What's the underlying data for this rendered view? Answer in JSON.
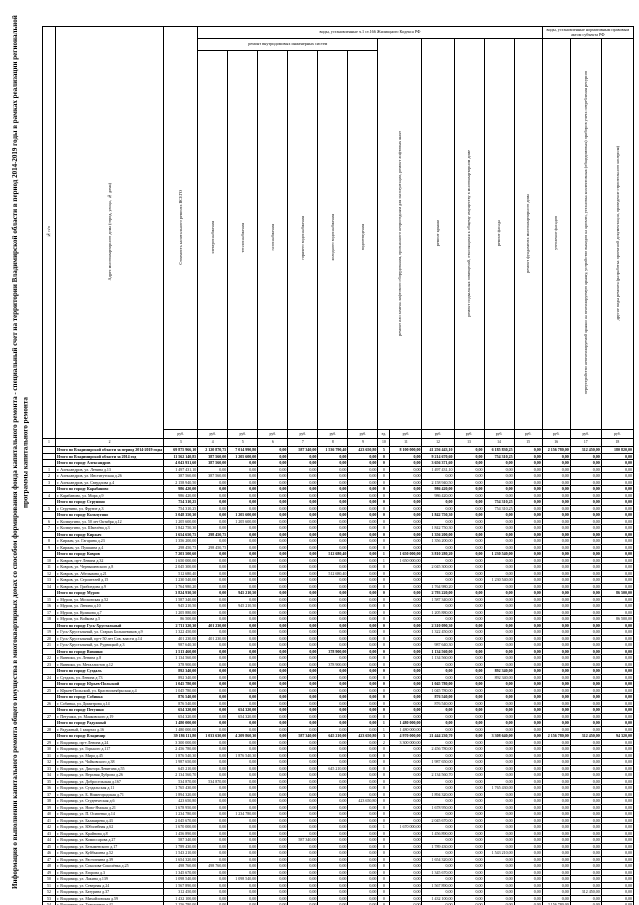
{
  "page": {
    "title": "Информация о выполнении капитального ремонта общего имущества в многоквартирных домах со способом формирования фонда капитального ремонта - специальный счет на территории Владимирской области в период 2014-2019 годы в рамках реализации региональной программы капитального ремонта"
  },
  "table": {
    "zero_money": "0,00",
    "zero_count": "0",
    "header": {
      "num": "№ п/п",
      "address": "Адрес многоквартирного дома (город, улица, № дома)",
      "total": "Стоимость капитального ремонта ВСЕГО",
      "group_hk": "виды, установленные ч.1 ст.166 Жилищного Кодекса РФ",
      "group_regional": "виды, установленные нормативным правовым актом субъекта РФ",
      "group_systems": "ремонт внутридомовых инженерных систем",
      "systems": [
        "электроснабжения",
        "теплоснабжения",
        "газоснабжения",
        "горячего водоснабжения",
        "холодного водоснабжения",
        "водоотведения"
      ],
      "works": [
        "ремонт или замена лифтового оборудования, признанного непригодным для эксплуатации, ремонт лифтовых шахт",
        "ремонт крыши",
        "ремонт подвальных помещений, относящихся к общему имуществу в многоквартирном доме",
        "ремонт фасада",
        "ремонт фундамента многоквартирного дома",
        "утепление фасадов",
        "переустройство невентилируемой крыши на вентилируемую крышу, устройство выходов на кровлю, установка коллективных (общедомовых) приборов учета потребления ресурсов",
        "другие виды ремонта (разработка проектной документации, проведение строительного контроля)"
      ],
      "units": [
        "руб.",
        "руб.",
        "руб.",
        "руб.",
        "руб.",
        "руб.",
        "руб.",
        "ед.",
        "руб.",
        "руб.",
        "руб.",
        "руб.",
        "руб.",
        "руб.",
        "руб.",
        "руб."
      ],
      "index": [
        "1",
        "2",
        "3",
        "4",
        "5",
        "6",
        "7",
        "8",
        "9",
        "10",
        "11",
        "12",
        "13",
        "14",
        "15",
        "16",
        "17",
        "18"
      ]
    },
    "rows": [
      {
        "kind": "region",
        "num": "",
        "address": "Итого по Владимирской области за период 2014-2019 годы",
        "v": {
          "0": "69 875 966,10",
          "1": "2 120 870,75",
          "2": "7 014 990,80",
          "4": "587 340,00",
          "5": "1 536 790,40",
          "6": "423 650,80",
          "7": "5",
          "8": "8 100 000,00",
          "9": "41 256 443,10",
          "11": "6 185 830,25",
          "13": "2 156 780,00",
          "14": "312 450,00",
          "15": "180 820,00"
        }
      },
      {
        "kind": "region",
        "num": "",
        "address": "Итого по Владимирской области за 2014 год",
        "v": {
          "0": "11 562 140,85",
          "1": "387 560,00",
          "2": "1 205 600,00",
          "9": "9 214 670,60",
          "11": "754 310,25"
        }
      },
      {
        "kind": "city",
        "num": "",
        "address": "Итого по городу Александров",
        "v": {
          "0": "4 043 931,60",
          "1": "387 560,00",
          "9": "3 656 371,60"
        }
      },
      {
        "kind": "house",
        "num": "1",
        "address": "г. Александров, ул. Ленина д.13",
        "v": {
          "0": "1 497 431,10",
          "9": "1 497 431,10"
        }
      },
      {
        "kind": "house",
        "num": "2",
        "address": "г. Александров, ул. Институтская д.26",
        "v": {
          "0": "387 560,00",
          "1": "387 560,00"
        }
      },
      {
        "kind": "house",
        "num": "3",
        "address": "г. Александров, ул. Свердлова д.4",
        "v": {
          "0": "2 158 940,50",
          "9": "2 158 940,50"
        }
      },
      {
        "kind": "city",
        "num": "",
        "address": "Итого по городу Карабаново",
        "v": {
          "0": "986 420,00",
          "9": "986 420,00"
        }
      },
      {
        "kind": "house",
        "num": "4",
        "address": "г. Карабаново, ул. Мира д.9",
        "v": {
          "0": "986 420,00",
          "9": "986 420,00"
        }
      },
      {
        "kind": "city",
        "num": "",
        "address": "Итого по городу Струнино",
        "v": {
          "0": "754 310,25",
          "11": "754 310,25"
        }
      },
      {
        "kind": "house",
        "num": "5",
        "address": "г. Струнино, ул. Фрунзе д.3",
        "v": {
          "0": "754 310,25",
          "11": "754 310,25"
        }
      },
      {
        "kind": "city",
        "num": "",
        "address": "Итого по городу Кольчугино",
        "v": {
          "0": "3 048 350,30",
          "2": "1 205 600,00",
          "9": "1 842 750,30"
        }
      },
      {
        "kind": "house",
        "num": "6",
        "address": "г. Кольчугино, ул. 50 лет Октября д.12",
        "v": {
          "0": "1 205 600,00",
          "2": "1 205 600,00"
        }
      },
      {
        "kind": "house",
        "num": "7",
        "address": "г. Кольчугино, ул. Шмелёва д.3",
        "v": {
          "0": "1 842 750,30",
          "9": "1 842 750,30"
        }
      },
      {
        "kind": "city",
        "num": "",
        "address": "Итого по городу Киржач",
        "v": {
          "0": "1 654 650,75",
          "1": "298 450,75",
          "9": "1 356 200,00"
        }
      },
      {
        "kind": "house",
        "num": "8",
        "address": "г. Киржач, ул. Гагарина д.23",
        "v": {
          "0": "1 356 200,00",
          "9": "1 356 200,00"
        }
      },
      {
        "kind": "house",
        "num": "9",
        "address": "г. Киржач, ул. Пушкина д.4",
        "v": {
          "0": "298 450,75",
          "1": "298 450,75"
        }
      },
      {
        "kind": "city",
        "num": "",
        "address": "Итого по городу Ковров",
        "v": {
          "0": "7 203 500,60",
          "5": "512 680,40",
          "7": "1",
          "8": "1 650 000,00",
          "9": "3 810 280,20",
          "11": "1 230 540,00"
        }
      },
      {
        "kind": "house",
        "num": "10",
        "address": "г. Ковров, пр-т Ленина д.32",
        "v": {
          "0": "1 650 000,00",
          "7": "1",
          "8": "1 650 000,00"
        }
      },
      {
        "kind": "house",
        "num": "11",
        "address": "г. Ковров, ул. Чернышевского д.8",
        "v": {
          "0": "2 045 300,00",
          "9": "2 045 300,00"
        }
      },
      {
        "kind": "house",
        "num": "12",
        "address": "г. Ковров, ул. Абельмана д.21",
        "v": {
          "0": "512 680,40",
          "5": "512 680,40"
        }
      },
      {
        "kind": "house",
        "num": "13",
        "address": "г. Ковров, ул. Строителей д.15",
        "v": {
          "0": "1 230 540,00",
          "11": "1 230 540,00"
        }
      },
      {
        "kind": "house",
        "num": "14",
        "address": "г. Ковров, ул. Грибоедова д.9",
        "v": {
          "0": "1 764 980,20",
          "9": "1 764 980,20"
        }
      },
      {
        "kind": "city",
        "num": "",
        "address": "Итого по городу Муром",
        "v": {
          "0": "3 824 930,50",
          "2": "945 210,50",
          "9": "2 793 220,00",
          "15": "86 500,00"
        }
      },
      {
        "kind": "house",
        "num": "15",
        "address": "г. Муром, ул. Московская д.52",
        "v": {
          "0": "1 587 340,00",
          "9": "1 587 340,00"
        }
      },
      {
        "kind": "house",
        "num": "16",
        "address": "г. Муром, ул. Ленина д.10",
        "v": {
          "0": "945 210,50",
          "2": "945 210,50"
        }
      },
      {
        "kind": "house",
        "num": "17",
        "address": "г. Муром, ул. Куликова д.7",
        "v": {
          "0": "1 205 880,00",
          "9": "1 205 880,00"
        }
      },
      {
        "kind": "house",
        "num": "18",
        "address": "г. Муром, ул. Войкова д.5",
        "v": {
          "0": "86 500,00",
          "15": "86 500,00"
        }
      },
      {
        "kind": "city",
        "num": "",
        "address": "Итого по городу Гусь-Хрустальный",
        "v": {
          "0": "2 711 320,30",
          "1": "401 230,00",
          "9": "2 310 090,30"
        }
      },
      {
        "kind": "house",
        "num": "19",
        "address": "г. Гусь-Хрустальный, ул. Старых Большевиков д.9",
        "v": {
          "0": "1 322 450,00",
          "9": "1 322 450,00"
        }
      },
      {
        "kind": "house",
        "num": "20",
        "address": "г. Гусь-Хрустальный, пр-т 50 лет Сов. власти д.14",
        "v": {
          "0": "401 230,00",
          "1": "401 230,00"
        }
      },
      {
        "kind": "house",
        "num": "21",
        "address": "г. Гусь-Хрустальный, ул. Рудницкой д.3",
        "v": {
          "0": "987 640,30",
          "9": "987 640,30"
        }
      },
      {
        "kind": "city",
        "num": "",
        "address": "Итого по городу Вязники",
        "v": {
          "0": "1 513 460,00",
          "5": "378 900,00",
          "9": "1 134 560,00"
        }
      },
      {
        "kind": "house",
        "num": "22",
        "address": "г. Вязники, ул. Ленина д.8",
        "v": {
          "0": "1 134 560,00",
          "9": "1 134 560,00"
        }
      },
      {
        "kind": "house",
        "num": "23",
        "address": "г. Вязники, ул. Металлистов д.12",
        "v": {
          "0": "378 900,00",
          "5": "378 900,00"
        }
      },
      {
        "kind": "city",
        "num": "",
        "address": "Итого по городу Суздаль",
        "v": {
          "0": "892 340,00",
          "11": "892 340,00"
        }
      },
      {
        "kind": "house",
        "num": "24",
        "address": "г. Суздаль, ул. Ленина д.73",
        "v": {
          "0": "892 340,00",
          "11": "892 340,00"
        }
      },
      {
        "kind": "city",
        "num": "",
        "address": "Итого по городу Юрьев-Польский",
        "v": {
          "0": "1 045 780,00",
          "9": "1 045 780,00"
        }
      },
      {
        "kind": "house",
        "num": "25",
        "address": "г. Юрьев-Польский, ул. Краснооктябрьская д.4",
        "v": {
          "0": "1 045 780,00",
          "9": "1 045 780,00"
        }
      },
      {
        "kind": "city",
        "num": "",
        "address": "Итого по городу Собинка",
        "v": {
          "0": "876 540,00",
          "9": "876 540,00"
        }
      },
      {
        "kind": "house",
        "num": "26",
        "address": "г. Собинка, ул. Димитрова д.14",
        "v": {
          "0": "876 540,00",
          "9": "876 540,00"
        }
      },
      {
        "kind": "city",
        "num": "",
        "address": "Итого по городу Петушки",
        "v": {
          "0": "654 320,00",
          "2": "654 320,00"
        }
      },
      {
        "kind": "house",
        "num": "27",
        "address": "г. Петушки, ул. Маяковского д.19",
        "v": {
          "0": "654 320,00",
          "2": "654 320,00"
        }
      },
      {
        "kind": "city",
        "num": "",
        "address": "Итого по городу Радужный",
        "v": {
          "0": "1 480 000,00",
          "7": "1",
          "8": "1 480 000,00"
        }
      },
      {
        "kind": "house",
        "num": "28",
        "address": "г. Радужный, 1 квартал д.16",
        "v": {
          "0": "1 480 000,00",
          "7": "1",
          "8": "1 480 000,00"
        }
      },
      {
        "kind": "city",
        "num": "",
        "address": "Итого по городу Владимир",
        "v": {
          "0": "39 186 111,80",
          "1": "1 033 630,00",
          "2": "4 209 860,30",
          "4": "587 340,00",
          "5": "645 210,00",
          "6": "423 650,80",
          "7": "3",
          "8": "4 970 000,00",
          "9": "21 444 230,70",
          "11": "3 308 640,00",
          "13": "2 156 780,00",
          "14": "312 450,00",
          "15": "94 320,00"
        }
      },
      {
        "kind": "house",
        "num": "29",
        "address": "г. Владимир, пр-т Ленина д.24",
        "v": {
          "0": "3 300 000,00",
          "7": "2",
          "8": "3 300 000,00"
        }
      },
      {
        "kind": "house",
        "num": "30",
        "address": "г. Владимир, ул. Горького д.117",
        "v": {
          "0": "2 456 780,00",
          "9": "2 456 780,00"
        }
      },
      {
        "kind": "house",
        "num": "31",
        "address": "г. Владимир, ул. Мира д.45",
        "v": {
          "0": "1 876 540,30",
          "2": "1 876 540,30"
        }
      },
      {
        "kind": "house",
        "num": "32",
        "address": "г. Владимир, ул. Чайковского д.38",
        "v": {
          "0": "1 987 650,00",
          "9": "1 987 650,00"
        }
      },
      {
        "kind": "house",
        "num": "33",
        "address": "г. Владимир, ул. Диктора Левитана д.55",
        "v": {
          "0": "645 210,00",
          "5": "645 210,00"
        }
      },
      {
        "kind": "house",
        "num": "34",
        "address": "г. Владимир, ул. Верхняя Дуброва д.26",
        "v": {
          "0": "2 134 560,70",
          "9": "2 134 560,70"
        }
      },
      {
        "kind": "house",
        "num": "35",
        "address": "г. Владимир, ул. Добросельская д.167",
        "v": {
          "0": "534 870,00",
          "1": "534 870,00"
        }
      },
      {
        "kind": "house",
        "num": "36",
        "address": "г. Владимир, ул. Суздальская д.11",
        "v": {
          "0": "1 765 430,00",
          "11": "1 765 430,00"
        }
      },
      {
        "kind": "house",
        "num": "37",
        "address": "г. Владимир, ул. Б. Нижегородская д.71",
        "v": {
          "0": "1 894 320,00",
          "9": "1 894 320,00"
        }
      },
      {
        "kind": "house",
        "num": "38",
        "address": "г. Владимир, ул. Студенческая д.6",
        "v": {
          "0": "423 650,80",
          "6": "423 650,80"
        }
      },
      {
        "kind": "house",
        "num": "39",
        "address": "г. Владимир, ул. Ново-Ямская д.21",
        "v": {
          "0": "1 678 950,00",
          "9": "1 678 950,00"
        }
      },
      {
        "kind": "house",
        "num": "40",
        "address": "г. Владимир, ул. П. Осипенко д.14",
        "v": {
          "0": "1 234 780,00",
          "2": "1 234 780,00"
        }
      },
      {
        "kind": "house",
        "num": "41",
        "address": "г. Владимир, ул. Балакирева д.43",
        "v": {
          "0": "2 045 670,00",
          "9": "2 045 670,00"
        }
      },
      {
        "kind": "house",
        "num": "42",
        "address": "г. Владимир, ул. Юбилейная д.62",
        "v": {
          "0": "1 670 000,00",
          "7": "1",
          "8": "1 670 000,00"
        }
      },
      {
        "kind": "house",
        "num": "43",
        "address": "г. Владимир, ул. Крайнова д.8",
        "v": {
          "0": "1 456 890,00",
          "9": "1 456 890,00"
        }
      },
      {
        "kind": "house",
        "num": "44",
        "address": "г. Владимир, ул. Комиссарова д.27",
        "v": {
          "0": "587 340,00",
          "4": "587 340,00"
        }
      },
      {
        "kind": "house",
        "num": "45",
        "address": "г. Владимир, ул. Безыменского д.17",
        "v": {
          "0": "1 789 430,00",
          "9": "1 789 430,00"
        }
      },
      {
        "kind": "house",
        "num": "46",
        "address": "г. Владимир, ул. Куйбышева д.52",
        "v": {
          "0": "1 543 210,00",
          "11": "1 543 210,00"
        }
      },
      {
        "kind": "house",
        "num": "47",
        "address": "г. Владимир, ул. Растопчина д.39",
        "v": {
          "0": "1 654 320,00",
          "9": "1 654 320,00"
        }
      },
      {
        "kind": "house",
        "num": "48",
        "address": "г. Владимир, ул. Соколова-Соколёнка д.25",
        "v": {
          "0": "498 760,00",
          "1": "498 760,00"
        }
      },
      {
        "kind": "house",
        "num": "49",
        "address": "г. Владимир, ул. Егорова д.3",
        "v": {
          "0": "1 345 670,00",
          "9": "1 345 670,00"
        }
      },
      {
        "kind": "house",
        "num": "50",
        "address": "г. Владимир, ул. Лакина д.139",
        "v": {
          "0": "1 098 540,00",
          "2": "1 098 540,00"
        }
      },
      {
        "kind": "house",
        "num": "51",
        "address": "г. Владимир, ул. Северная д.24",
        "v": {
          "0": "1 567 890,00",
          "9": "1 567 890,00"
        }
      },
      {
        "kind": "house",
        "num": "52",
        "address": "г. Владимир, ул. Батурина д.37",
        "v": {
          "0": "312 450,00",
          "14": "312 450,00"
        }
      },
      {
        "kind": "house",
        "num": "53",
        "address": "г. Владимир, ул. Михайловская д.59",
        "v": {
          "0": "1 432 100,00",
          "9": "1 432 100,00"
        }
      },
      {
        "kind": "house",
        "num": "54",
        "address": "г. Владимир, ул. Тракторная д.42",
        "v": {
          "0": "2 156 780,00",
          "13": "2 156 780,00"
        }
      },
      {
        "kind": "house",
        "num": "55",
        "address": "г. Владимир, ул. Усти-на-Лабе д.11",
        "v": {
          "0": "94 320,00",
          "15": "94 320,00"
        }
      }
    ]
  }
}
